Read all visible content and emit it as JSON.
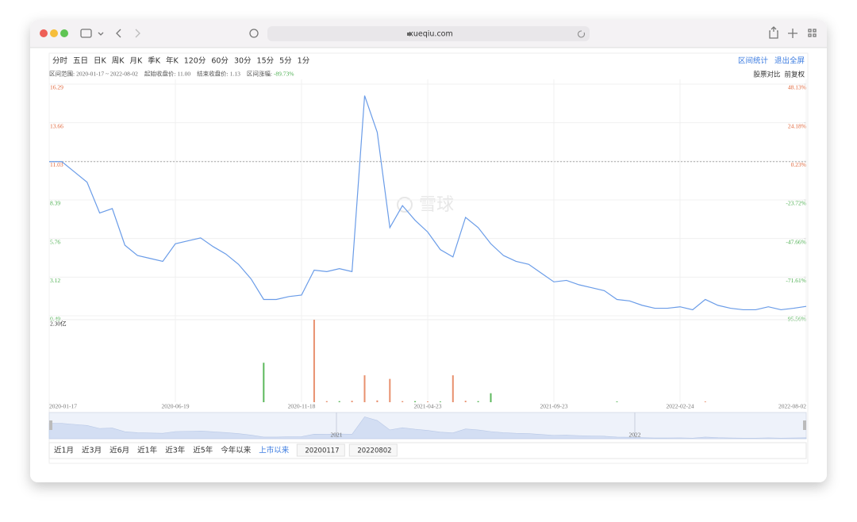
{
  "browser": {
    "url": "xueqiu.com"
  },
  "toolbar": {
    "periods": [
      "分时",
      "五日",
      "日K",
      "周K",
      "月K",
      "季K",
      "年K",
      "120分",
      "60分",
      "30分",
      "15分",
      "5分",
      "1分"
    ],
    "actions": [
      "区间统计",
      "退出全屏"
    ]
  },
  "info": {
    "items": [
      {
        "label": "区间范围:",
        "value": "2020-01-17 ~ 2022-08-02"
      },
      {
        "label": "起始收盘价:",
        "value": "11.00"
      },
      {
        "label": "结束收盘价:",
        "value": "1.13"
      },
      {
        "label": "区间涨幅:",
        "value": "-89.73%"
      }
    ],
    "options": [
      "股票对比",
      "前复权"
    ]
  },
  "chart_data": {
    "type": "line",
    "color": "#6a9ce8",
    "grid": true,
    "categories": [
      "2020-01-17",
      null,
      null,
      null,
      null,
      null,
      null,
      null,
      null,
      null,
      "2020-06-19",
      null,
      null,
      null,
      null,
      null,
      null,
      null,
      null,
      null,
      "2020-11-18",
      null,
      null,
      null,
      null,
      null,
      null,
      null,
      null,
      null,
      "2021-04-23",
      null,
      null,
      null,
      null,
      null,
      null,
      null,
      null,
      null,
      "2021-09-23",
      null,
      null,
      null,
      null,
      null,
      null,
      null,
      null,
      null,
      "2022-02-24",
      null,
      null,
      null,
      null,
      null,
      null,
      null,
      null,
      null,
      "2022-08-02"
    ],
    "values": [
      11.0,
      11.0,
      10.3,
      9.6,
      7.5,
      7.8,
      5.3,
      4.6,
      4.4,
      4.2,
      5.4,
      5.6,
      5.8,
      5.2,
      4.7,
      4.0,
      3.0,
      1.6,
      1.6,
      1.8,
      1.9,
      3.6,
      3.5,
      3.7,
      3.5,
      15.5,
      13.0,
      6.5,
      8.0,
      7.0,
      6.2,
      5.0,
      4.5,
      7.2,
      6.5,
      5.4,
      4.6,
      4.2,
      4.0,
      3.4,
      2.8,
      2.9,
      2.6,
      2.4,
      2.2,
      1.6,
      1.5,
      1.2,
      1.0,
      1.0,
      1.1,
      0.9,
      1.6,
      1.2,
      1.0,
      0.9,
      0.9,
      1.1,
      0.9,
      1.0,
      1.13
    ],
    "ylim": [
      0.49,
      16.29
    ],
    "yticks": [
      16.29,
      13.66,
      11.03,
      8.39,
      5.76,
      3.12,
      0.49
    ],
    "y2lim": [
      -95.56,
      48.13
    ],
    "y2ticks": [
      {
        "value": 48.13,
        "label": "48.13%"
      },
      {
        "value": 24.18,
        "label": "24.18%"
      },
      {
        "value": 0.23,
        "label": "0.23%"
      },
      {
        "value": -23.72,
        "label": "-23.72%"
      },
      {
        "value": -47.66,
        "label": "-47.66%"
      },
      {
        "value": -71.61,
        "label": "-71.61%"
      },
      {
        "value": -95.56,
        "label": "-95.56%"
      }
    ],
    "up_color": "#e0663a",
    "down_color": "#4caf50",
    "volume": {
      "ylim": [
        0,
        2.3
      ],
      "yticks": [
        {
          "value": 2.3,
          "label": "2.30亿"
        }
      ],
      "series": [
        {
          "color": "#e8906e",
          "values": [
            null,
            null,
            null,
            null,
            null,
            null,
            null,
            null,
            null,
            null,
            null,
            null,
            null,
            null,
            null,
            null,
            null,
            null,
            null,
            null,
            null,
            2.3,
            0.03,
            null,
            0.04,
            0.75,
            0.05,
            0.65,
            0.03,
            null,
            0.02,
            null,
            0.75,
            0.04,
            null,
            null,
            null,
            null,
            null,
            null,
            null,
            null,
            null,
            null,
            null,
            null,
            null,
            null,
            null,
            null,
            null,
            null,
            0.02,
            null,
            null,
            null,
            null,
            null,
            null,
            null,
            null
          ]
        },
        {
          "color": "#5cb85c",
          "values": [
            null,
            null,
            null,
            null,
            null,
            null,
            null,
            null,
            null,
            null,
            null,
            null,
            null,
            null,
            null,
            null,
            null,
            1.1,
            null,
            null,
            null,
            null,
            null,
            0.03,
            null,
            null,
            null,
            null,
            null,
            0.03,
            null,
            0.02,
            null,
            null,
            0.03,
            0.25,
            null,
            null,
            null,
            null,
            null,
            null,
            null,
            null,
            null,
            0.02,
            null,
            null,
            null,
            null,
            null,
            null,
            null,
            null,
            null,
            null,
            null,
            null,
            null,
            null,
            null
          ]
        }
      ]
    }
  },
  "navigator": {
    "labels": [
      "2021",
      "2022"
    ]
  },
  "range_buttons": {
    "items": [
      "近1月",
      "近3月",
      "近6月",
      "近1年",
      "近3年",
      "近5年",
      "今年以来",
      "上市以来"
    ],
    "active": "上市以来",
    "start": "20200117",
    "end": "20220802"
  },
  "watermark": "雪球"
}
